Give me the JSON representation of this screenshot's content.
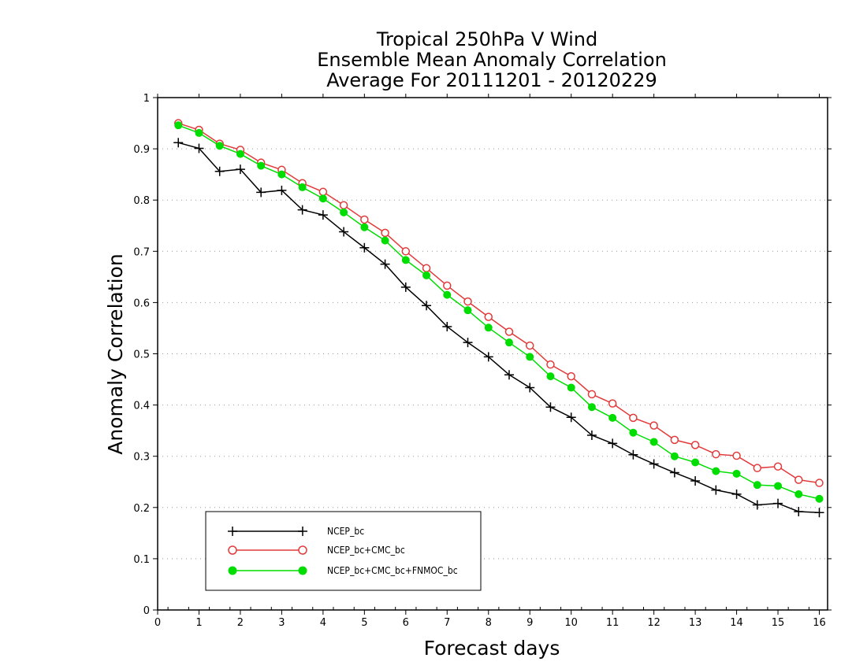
{
  "chart_data": {
    "type": "line",
    "title": [
      "Tropical 250hPa V Wind",
      "Ensemble Mean Anomaly Correlation",
      "Average For 20111201 - 20120229"
    ],
    "xlabel": "Forecast days",
    "ylabel": "Anomaly Correlation",
    "xlim": [
      0,
      16.2
    ],
    "ylim": [
      0,
      1
    ],
    "xticks": [
      "0",
      "1",
      "2",
      "3",
      "4",
      "5",
      "6",
      "7",
      "8",
      "9",
      "10",
      "11",
      "12",
      "13",
      "14",
      "15",
      "16"
    ],
    "yticks": [
      "0",
      "0.1",
      "0.2",
      "0.3",
      "0.4",
      "0.5",
      "0.6",
      "0.7",
      "0.8",
      "0.9",
      "1"
    ],
    "grid": "horizontal dotted",
    "legend_position": "bottom-left",
    "x": [
      0.5,
      1,
      1.5,
      2,
      2.5,
      3,
      3.5,
      4,
      4.5,
      5,
      5.5,
      6,
      6.5,
      7,
      7.5,
      8,
      8.5,
      9,
      9.5,
      10,
      10.5,
      11,
      11.5,
      12,
      12.5,
      13,
      13.5,
      14,
      14.5,
      15,
      15.5,
      16
    ],
    "series": [
      {
        "name": "NCEP_bc",
        "color": "#000000",
        "marker": "plus",
        "values": [
          0.912,
          0.901,
          0.856,
          0.86,
          0.815,
          0.819,
          0.781,
          0.771,
          0.738,
          0.707,
          0.675,
          0.63,
          0.594,
          0.553,
          0.522,
          0.494,
          0.459,
          0.434,
          0.396,
          0.376,
          0.341,
          0.325,
          0.303,
          0.285,
          0.268,
          0.252,
          0.234,
          0.226,
          0.205,
          0.208,
          0.192,
          0.19
        ]
      },
      {
        "name": "NCEP_bc+CMC_bc",
        "color": "#e23a3a",
        "marker": "open-circle",
        "values": [
          0.95,
          0.937,
          0.91,
          0.898,
          0.873,
          0.859,
          0.833,
          0.816,
          0.79,
          0.762,
          0.736,
          0.7,
          0.667,
          0.633,
          0.602,
          0.572,
          0.543,
          0.516,
          0.479,
          0.456,
          0.421,
          0.403,
          0.375,
          0.36,
          0.332,
          0.322,
          0.304,
          0.301,
          0.277,
          0.28,
          0.254,
          0.248
        ]
      },
      {
        "name": "NCEP_bc+CMC_bc+FNMOC_bc",
        "color": "#00dd00",
        "marker": "filled-circle",
        "values": [
          0.946,
          0.931,
          0.906,
          0.89,
          0.867,
          0.85,
          0.825,
          0.803,
          0.776,
          0.747,
          0.721,
          0.683,
          0.653,
          0.615,
          0.585,
          0.551,
          0.522,
          0.494,
          0.456,
          0.434,
          0.396,
          0.375,
          0.346,
          0.328,
          0.3,
          0.288,
          0.271,
          0.266,
          0.244,
          0.242,
          0.226,
          0.217
        ]
      }
    ]
  }
}
